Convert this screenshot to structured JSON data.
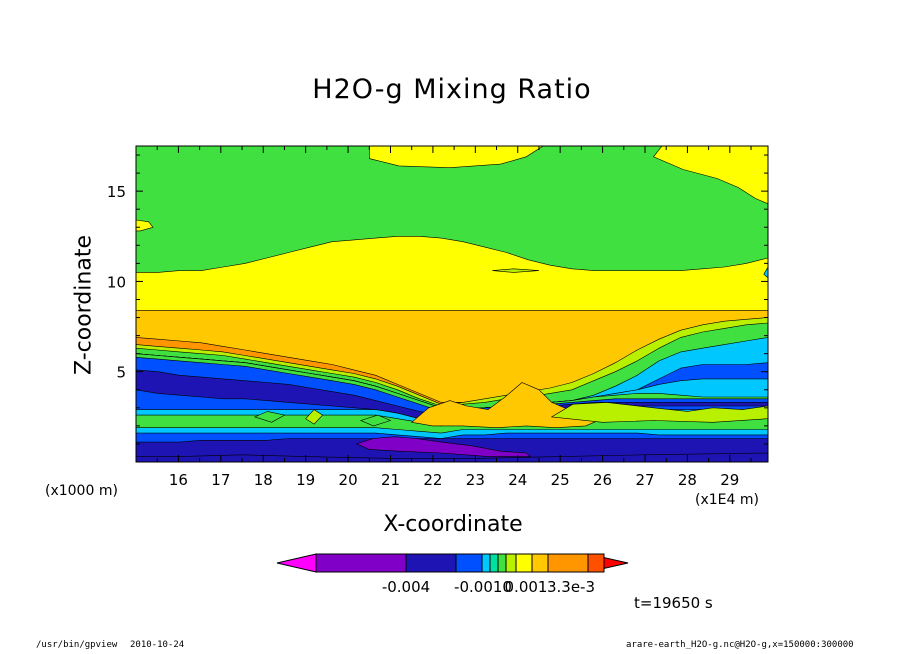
{
  "chart_data": {
    "type": "heatmap",
    "title": "H2O-g Mixing Ratio",
    "xlabel": "X-coordinate",
    "ylabel": "Z-coordinate",
    "x_unit_note": "(x1E4 m)",
    "y_unit_note": "(x1000 m)",
    "xlim": [
      15.0,
      29.9
    ],
    "ylim": [
      0.0,
      17.5
    ],
    "x_ticks": [
      16,
      17,
      18,
      19,
      20,
      21,
      22,
      23,
      24,
      25,
      26,
      27,
      28,
      29
    ],
    "y_ticks": [
      5,
      10,
      15
    ],
    "colorbar": {
      "colors": [
        "#ff00ff",
        "#8000c8",
        "#1e14b4",
        "#0050ff",
        "#00c8ff",
        "#00e0a0",
        "#40e040",
        "#b8f000",
        "#ffff00",
        "#ffc800",
        "#ff9600",
        "#ff5000",
        "#ff0000"
      ],
      "labels": [
        "-0.004",
        "-0.0010",
        "0.001",
        "3.3e-3"
      ]
    },
    "bands": [
      {
        "color": "#1e14b4",
        "top": [
          1.1,
          1.1,
          1.1,
          1.2,
          1.2,
          1.2,
          1.2,
          1.3,
          1.3,
          1.3,
          1.3,
          1.3,
          1.3,
          1.3,
          1.3,
          1.3,
          1.3,
          1.3,
          1.3,
          1.3,
          1.3,
          1.3,
          1.3,
          1.3,
          1.3,
          1.3,
          1.3,
          1.3,
          1.3,
          1.3
        ]
      },
      {
        "color": "#0050ff",
        "top": [
          1.6,
          1.6,
          1.6,
          1.6,
          1.6,
          1.6,
          1.6,
          1.6,
          1.6,
          1.6,
          1.6,
          1.6,
          1.5,
          1.4,
          1.3,
          1.5,
          1.5,
          1.6,
          1.6,
          1.6,
          1.6,
          1.6,
          1.6,
          1.6,
          1.5,
          1.5,
          1.5,
          1.5,
          1.5,
          1.5
        ]
      },
      {
        "color": "#00c8ff",
        "top": [
          1.9,
          1.9,
          1.9,
          1.9,
          1.9,
          1.9,
          1.9,
          1.9,
          1.9,
          1.9,
          1.9,
          1.9,
          1.8,
          1.7,
          1.6,
          1.8,
          1.8,
          1.8,
          1.8,
          1.8,
          1.8,
          1.8,
          1.8,
          1.8,
          1.8,
          1.8,
          1.8,
          1.8,
          1.8,
          1.8
        ]
      },
      {
        "color": "#40e040",
        "top": [
          2.6,
          2.6,
          2.6,
          2.6,
          2.6,
          2.6,
          2.6,
          2.6,
          2.6,
          2.6,
          2.6,
          2.6,
          2.4,
          2.2,
          2.0,
          2.4,
          2.4,
          2.5,
          2.5,
          2.5,
          2.6,
          2.6,
          2.6,
          2.6,
          2.6,
          2.6,
          2.6,
          2.6,
          2.6,
          2.6
        ]
      },
      {
        "color": "#00c8ff",
        "top": [
          2.9,
          2.9,
          2.9,
          2.9,
          2.9,
          2.9,
          2.9,
          2.9,
          2.9,
          2.9,
          2.9,
          2.9,
          2.7,
          2.4,
          2.2,
          2.6,
          2.6,
          2.7,
          2.8,
          2.8,
          2.9,
          2.9,
          2.9,
          2.9,
          2.9,
          2.9,
          2.9,
          2.9,
          2.9,
          2.9
        ]
      },
      {
        "color": "#0050ff",
        "top": [
          4.0,
          3.8,
          3.7,
          3.6,
          3.5,
          3.5,
          3.4,
          3.3,
          3.2,
          3.1,
          3.0,
          2.9,
          2.7,
          2.4,
          2.2,
          2.6,
          2.6,
          2.8,
          2.9,
          2.9,
          2.9,
          3.1,
          3.2,
          3.1,
          3.1,
          3.1,
          3.1,
          3.1,
          3.1,
          3.1
        ]
      },
      {
        "color": "#1e14b4",
        "top": [
          5.1,
          5.0,
          4.8,
          4.7,
          4.6,
          4.5,
          4.4,
          4.3,
          4.1,
          3.9,
          3.7,
          3.4,
          3.1,
          2.8,
          2.6,
          2.8,
          2.8,
          3.0,
          3.1,
          3.1,
          3.2,
          3.3,
          3.3,
          3.3,
          3.3,
          3.3,
          3.3,
          3.3,
          3.3,
          3.3
        ]
      },
      {
        "color": "#0050ff",
        "top": [
          5.8,
          5.7,
          5.6,
          5.5,
          5.4,
          5.3,
          5.1,
          4.9,
          4.7,
          4.5,
          4.3,
          4.0,
          3.6,
          3.2,
          2.8,
          3.0,
          3.0,
          3.1,
          3.1,
          3.2,
          3.3,
          3.4,
          3.5,
          3.5,
          3.5,
          3.5,
          3.5,
          3.5,
          3.5,
          3.5
        ]
      },
      {
        "color": "#40e040",
        "top": [
          6.0,
          5.9,
          5.8,
          5.7,
          5.6,
          5.5,
          5.3,
          5.1,
          4.9,
          4.7,
          4.5,
          4.2,
          3.8,
          3.4,
          3.0,
          3.0,
          3.0,
          3.1,
          3.2,
          3.3,
          3.4,
          3.6,
          3.7,
          3.8,
          3.8,
          3.7,
          3.6,
          3.6,
          3.6,
          3.6
        ]
      },
      {
        "color": "#00c8ff",
        "top": [
          6.0,
          5.9,
          5.8,
          5.7,
          5.6,
          5.5,
          5.3,
          5.1,
          4.9,
          4.7,
          4.5,
          4.2,
          3.8,
          3.4,
          3.0,
          3.0,
          3.0,
          3.1,
          3.2,
          3.3,
          3.4,
          3.6,
          3.8,
          4.0,
          4.3,
          4.5,
          4.6,
          4.6,
          4.6,
          4.6
        ]
      },
      {
        "color": "#0050ff",
        "top": [
          6.0,
          5.9,
          5.8,
          5.7,
          5.6,
          5.5,
          5.3,
          5.1,
          4.9,
          4.7,
          4.5,
          4.2,
          3.8,
          3.4,
          3.0,
          3.0,
          3.0,
          3.1,
          3.2,
          3.3,
          3.4,
          3.6,
          3.8,
          4.0,
          4.6,
          5.2,
          5.4,
          5.4,
          5.4,
          5.5
        ]
      },
      {
        "color": "#00c8ff",
        "top": [
          6.0,
          5.9,
          5.8,
          5.7,
          5.6,
          5.5,
          5.3,
          5.1,
          4.9,
          4.7,
          4.5,
          4.2,
          3.8,
          3.4,
          3.0,
          3.0,
          3.0,
          3.1,
          3.2,
          3.3,
          3.4,
          3.7,
          4.2,
          4.8,
          5.6,
          6.1,
          6.3,
          6.5,
          6.7,
          6.9
        ]
      },
      {
        "color": "#40e040",
        "top": [
          6.3,
          6.2,
          6.1,
          6.0,
          5.9,
          5.7,
          5.5,
          5.3,
          5.1,
          4.9,
          4.7,
          4.4,
          4.0,
          3.5,
          3.1,
          3.2,
          3.3,
          3.5,
          3.6,
          3.8,
          4.0,
          4.5,
          5.0,
          5.6,
          6.3,
          6.9,
          7.2,
          7.4,
          7.6,
          7.7
        ]
      },
      {
        "color": "#b8f000",
        "top": [
          6.5,
          6.4,
          6.3,
          6.2,
          6.1,
          5.9,
          5.7,
          5.5,
          5.3,
          5.1,
          4.9,
          4.6,
          4.2,
          3.7,
          3.2,
          3.3,
          3.5,
          3.7,
          3.9,
          4.1,
          4.4,
          4.9,
          5.5,
          6.2,
          6.8,
          7.3,
          7.6,
          7.8,
          7.9,
          8.0
        ]
      },
      {
        "color": "#ff9600",
        "top": [
          6.9,
          6.8,
          6.7,
          6.6,
          6.4,
          6.2,
          6.0,
          5.8,
          5.6,
          5.4,
          5.1,
          4.8,
          4.3,
          3.8,
          3.3,
          3.3,
          3.4,
          3.6,
          3.8,
          4.0,
          4.3,
          4.7,
          5.3,
          6.0,
          6.6,
          7.2,
          7.5,
          7.7,
          7.8,
          7.9
        ]
      },
      {
        "color": "#ffc800",
        "top": [
          8.4,
          8.4,
          8.4,
          8.4,
          8.4,
          8.4,
          8.4,
          8.4,
          8.4,
          8.4,
          8.4,
          8.4,
          8.4,
          8.4,
          8.4,
          8.4,
          8.4,
          8.4,
          8.4,
          8.4,
          8.4,
          8.4,
          8.4,
          8.4,
          8.4,
          8.4,
          8.4,
          8.4,
          8.4,
          8.4
        ]
      },
      {
        "color": "#ffff00",
        "top": [
          10.5,
          10.5,
          10.6,
          10.6,
          10.8,
          11.0,
          11.3,
          11.6,
          11.9,
          12.2,
          12.3,
          12.4,
          12.5,
          12.5,
          12.4,
          12.2,
          11.9,
          11.6,
          11.2,
          10.9,
          10.7,
          10.6,
          10.6,
          10.6,
          10.6,
          10.6,
          10.7,
          10.8,
          11.0,
          11.3
        ]
      },
      {
        "color": "#40e040",
        "top": [
          17.5,
          17.5,
          17.5,
          17.5,
          17.5,
          17.5,
          17.5,
          17.5,
          17.5,
          17.5,
          17.5,
          17.5,
          17.5,
          17.5,
          17.5,
          17.5,
          17.5,
          17.5,
          17.5,
          17.5,
          17.5,
          17.5,
          17.5,
          17.5,
          17.5,
          17.5,
          17.5,
          17.5,
          17.5,
          17.5
        ]
      }
    ],
    "patches": [
      {
        "color": "#ffff00",
        "points": [
          [
            20.5,
            17.5
          ],
          [
            20.5,
            16.8
          ],
          [
            21.2,
            16.4
          ],
          [
            22.4,
            16.3
          ],
          [
            23.6,
            16.5
          ],
          [
            24.2,
            16.9
          ],
          [
            24.6,
            17.5
          ]
        ]
      },
      {
        "color": "#ffff00",
        "points": [
          [
            27.4,
            17.5
          ],
          [
            27.2,
            16.9
          ],
          [
            27.9,
            16.2
          ],
          [
            28.7,
            15.7
          ],
          [
            29.2,
            15.2
          ],
          [
            29.6,
            14.6
          ],
          [
            29.9,
            14.3
          ],
          [
            29.9,
            17.5
          ]
        ]
      },
      {
        "color": "#ffff00",
        "points": [
          [
            15.0,
            13.4
          ],
          [
            15.3,
            13.3
          ],
          [
            15.4,
            13.0
          ],
          [
            15.1,
            12.8
          ],
          [
            15.0,
            12.8
          ]
        ]
      },
      {
        "color": "#8000c8",
        "points": [
          [
            20.2,
            1.0
          ],
          [
            20.6,
            1.3
          ],
          [
            21.1,
            1.4
          ],
          [
            21.6,
            1.3
          ],
          [
            22.2,
            1.1
          ],
          [
            22.9,
            0.9
          ],
          [
            23.6,
            0.6
          ],
          [
            24.2,
            0.5
          ],
          [
            24.3,
            0.3
          ],
          [
            23.3,
            0.3
          ],
          [
            22.2,
            0.5
          ],
          [
            21.2,
            0.6
          ],
          [
            20.5,
            0.7
          ]
        ]
      },
      {
        "color": "#1e14b4",
        "points": [
          [
            15.0,
            0.3
          ],
          [
            16.0,
            0.3
          ],
          [
            17.5,
            0.4
          ],
          [
            19.0,
            0.3
          ],
          [
            21.0,
            0.2
          ],
          [
            23.0,
            0.2
          ],
          [
            25.0,
            0.3
          ],
          [
            27.0,
            0.4
          ],
          [
            29.9,
            0.5
          ],
          [
            29.9,
            0.0
          ],
          [
            15.0,
            0.0
          ]
        ]
      },
      {
        "color": "#40e040",
        "points": [
          [
            17.8,
            2.5
          ],
          [
            18.1,
            2.8
          ],
          [
            18.5,
            2.6
          ],
          [
            18.2,
            2.2
          ]
        ]
      },
      {
        "color": "#b8f000",
        "points": [
          [
            19.0,
            2.4
          ],
          [
            19.2,
            2.9
          ],
          [
            19.4,
            2.6
          ],
          [
            19.2,
            2.1
          ]
        ]
      },
      {
        "color": "#40e040",
        "points": [
          [
            20.3,
            2.3
          ],
          [
            20.7,
            2.6
          ],
          [
            21.0,
            2.3
          ],
          [
            20.6,
            2.0
          ]
        ]
      },
      {
        "color": "#ffc800",
        "points": [
          [
            21.5,
            2.2
          ],
          [
            21.9,
            3.0
          ],
          [
            22.4,
            3.4
          ],
          [
            22.8,
            3.1
          ],
          [
            23.3,
            2.9
          ],
          [
            23.7,
            3.6
          ],
          [
            24.1,
            4.4
          ],
          [
            24.5,
            4.0
          ],
          [
            24.8,
            3.3
          ],
          [
            25.2,
            2.9
          ],
          [
            25.7,
            2.7
          ],
          [
            26.0,
            2.4
          ],
          [
            25.6,
            2.0
          ],
          [
            24.9,
            1.9
          ],
          [
            24.2,
            2.0
          ],
          [
            23.5,
            1.9
          ],
          [
            22.7,
            2.0
          ],
          [
            22.0,
            2.0
          ]
        ]
      },
      {
        "color": "#b8f000",
        "points": [
          [
            24.8,
            2.5
          ],
          [
            25.3,
            3.2
          ],
          [
            26.1,
            3.3
          ],
          [
            27.2,
            3.0
          ],
          [
            28.0,
            2.8
          ],
          [
            28.6,
            3.0
          ],
          [
            29.3,
            2.9
          ],
          [
            29.9,
            3.1
          ],
          [
            29.9,
            2.4
          ],
          [
            28.6,
            2.2
          ],
          [
            27.2,
            2.3
          ],
          [
            26.0,
            2.2
          ]
        ]
      },
      {
        "color": "#00c8ff",
        "points": [
          [
            29.8,
            10.4
          ],
          [
            29.9,
            10.8
          ],
          [
            29.9,
            10.2
          ]
        ]
      },
      {
        "color": "#b8f000",
        "points": [
          [
            23.4,
            10.6
          ],
          [
            23.9,
            10.7
          ],
          [
            24.5,
            10.6
          ],
          [
            23.9,
            10.5
          ]
        ]
      }
    ]
  },
  "footer": {
    "time_label": "t=19650 s",
    "command": "/usr/bin/gpview",
    "date": "2010-10-24",
    "file": "arare-earth_H2O-g.nc@H2O-g,x=150000:300000"
  }
}
